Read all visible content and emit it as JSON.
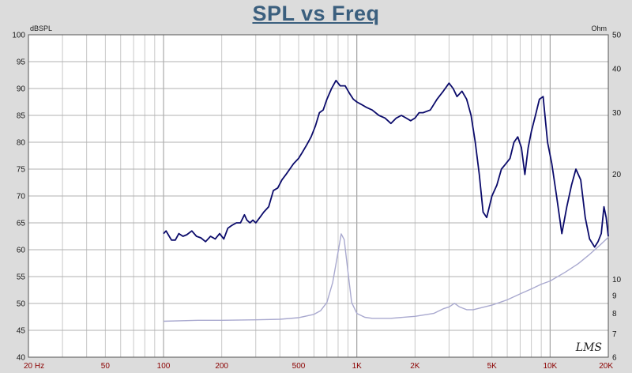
{
  "title": "SPL vs Freq",
  "logo_text": "LMS",
  "chart_data": {
    "type": "line",
    "x_scale": "log",
    "grid": true,
    "xlim": [
      20,
      20000
    ],
    "x_ticks": [
      {
        "v": 20,
        "label": "20 Hz"
      },
      {
        "v": 50,
        "label": "50"
      },
      {
        "v": 100,
        "label": "100"
      },
      {
        "v": 200,
        "label": "200"
      },
      {
        "v": 500,
        "label": "500"
      },
      {
        "v": 1000,
        "label": "1K"
      },
      {
        "v": 2000,
        "label": "2K"
      },
      {
        "v": 5000,
        "label": "5K"
      },
      {
        "v": 10000,
        "label": "10K"
      },
      {
        "v": 20000,
        "label": "20K"
      }
    ],
    "y_left": {
      "unit": "dBSPL",
      "ylim": [
        40,
        100
      ],
      "ticks": [
        "40",
        "45",
        "50",
        "55",
        "60",
        "65",
        "70",
        "75",
        "80",
        "85",
        "90",
        "95",
        "100"
      ]
    },
    "y_right": {
      "unit": "Ohm",
      "scale": "log",
      "ylim": [
        6,
        50
      ],
      "ticks": [
        {
          "v": 6,
          "label": "6"
        },
        {
          "v": 7,
          "label": "7"
        },
        {
          "v": 8,
          "label": "8"
        },
        {
          "v": 9,
          "label": "9"
        },
        {
          "v": 10,
          "label": "10"
        },
        {
          "v": 20,
          "label": "20"
        },
        {
          "v": 30,
          "label": "30"
        },
        {
          "v": 40,
          "label": "40"
        },
        {
          "v": 50,
          "label": "50"
        }
      ]
    },
    "series": [
      {
        "axis": "left",
        "color": "#0b0b6b",
        "points": [
          [
            100,
            63
          ],
          [
            103,
            63.5
          ],
          [
            107,
            62.5
          ],
          [
            110,
            61.8
          ],
          [
            115,
            61.8
          ],
          [
            120,
            63
          ],
          [
            126,
            62.5
          ],
          [
            132,
            62.8
          ],
          [
            140,
            63.5
          ],
          [
            148,
            62.5
          ],
          [
            156,
            62.2
          ],
          [
            165,
            61.5
          ],
          [
            175,
            62.5
          ],
          [
            185,
            62
          ],
          [
            195,
            63
          ],
          [
            205,
            62
          ],
          [
            215,
            64
          ],
          [
            225,
            64.5
          ],
          [
            238,
            65
          ],
          [
            250,
            65
          ],
          [
            262,
            66.5
          ],
          [
            270,
            65.5
          ],
          [
            280,
            65
          ],
          [
            290,
            65.5
          ],
          [
            300,
            65
          ],
          [
            315,
            66
          ],
          [
            330,
            67
          ],
          [
            350,
            68
          ],
          [
            370,
            71
          ],
          [
            390,
            71.5
          ],
          [
            410,
            73
          ],
          [
            430,
            74
          ],
          [
            450,
            75
          ],
          [
            470,
            76
          ],
          [
            500,
            77
          ],
          [
            520,
            78
          ],
          [
            550,
            79.5
          ],
          [
            580,
            81
          ],
          [
            610,
            83
          ],
          [
            640,
            85.5
          ],
          [
            670,
            86
          ],
          [
            700,
            88
          ],
          [
            740,
            90
          ],
          [
            780,
            91.5
          ],
          [
            820,
            90.5
          ],
          [
            870,
            90.5
          ],
          [
            920,
            89
          ],
          [
            960,
            88
          ],
          [
            1000,
            87.5
          ],
          [
            1060,
            87
          ],
          [
            1120,
            86.5
          ],
          [
            1200,
            86
          ],
          [
            1300,
            85
          ],
          [
            1400,
            84.5
          ],
          [
            1500,
            83.5
          ],
          [
            1600,
            84.5
          ],
          [
            1700,
            85
          ],
          [
            1800,
            84.5
          ],
          [
            1900,
            84
          ],
          [
            2000,
            84.5
          ],
          [
            2100,
            85.5
          ],
          [
            2200,
            85.5
          ],
          [
            2400,
            86
          ],
          [
            2600,
            88
          ],
          [
            2800,
            89.5
          ],
          [
            3000,
            91
          ],
          [
            3150,
            90
          ],
          [
            3300,
            88.5
          ],
          [
            3500,
            89.5
          ],
          [
            3700,
            88
          ],
          [
            3900,
            85
          ],
          [
            4100,
            80
          ],
          [
            4300,
            74
          ],
          [
            4500,
            67
          ],
          [
            4700,
            66
          ],
          [
            5000,
            70
          ],
          [
            5300,
            72
          ],
          [
            5600,
            75
          ],
          [
            5900,
            76
          ],
          [
            6200,
            77
          ],
          [
            6500,
            80
          ],
          [
            6800,
            81
          ],
          [
            7100,
            79
          ],
          [
            7400,
            74
          ],
          [
            7700,
            79
          ],
          [
            8000,
            82
          ],
          [
            8400,
            85
          ],
          [
            8800,
            88
          ],
          [
            9200,
            88.5
          ],
          [
            9700,
            80
          ],
          [
            10200,
            76
          ],
          [
            10800,
            70
          ],
          [
            11500,
            63
          ],
          [
            12200,
            68
          ],
          [
            12900,
            72
          ],
          [
            13600,
            75
          ],
          [
            14400,
            73
          ],
          [
            15200,
            66
          ],
          [
            16000,
            62
          ],
          [
            17000,
            60.5
          ],
          [
            17700,
            61.5
          ],
          [
            18400,
            63
          ],
          [
            19000,
            68
          ],
          [
            19500,
            66
          ],
          [
            20000,
            62.5
          ]
        ]
      },
      {
        "axis": "right",
        "color": "#a9a9cf",
        "points": [
          [
            100,
            7.6
          ],
          [
            150,
            7.65
          ],
          [
            200,
            7.65
          ],
          [
            300,
            7.67
          ],
          [
            400,
            7.7
          ],
          [
            500,
            7.78
          ],
          [
            600,
            7.95
          ],
          [
            650,
            8.15
          ],
          [
            700,
            8.6
          ],
          [
            750,
            9.8
          ],
          [
            800,
            12
          ],
          [
            830,
            13.5
          ],
          [
            860,
            13
          ],
          [
            900,
            10.5
          ],
          [
            940,
            8.6
          ],
          [
            1000,
            8
          ],
          [
            1100,
            7.8
          ],
          [
            1200,
            7.75
          ],
          [
            1500,
            7.75
          ],
          [
            2000,
            7.85
          ],
          [
            2500,
            8
          ],
          [
            2800,
            8.25
          ],
          [
            3000,
            8.35
          ],
          [
            3200,
            8.55
          ],
          [
            3400,
            8.35
          ],
          [
            3700,
            8.2
          ],
          [
            4000,
            8.2
          ],
          [
            5000,
            8.45
          ],
          [
            6000,
            8.75
          ],
          [
            7000,
            9.1
          ],
          [
            8000,
            9.4
          ],
          [
            9000,
            9.7
          ],
          [
            10000,
            9.9
          ],
          [
            12000,
            10.5
          ],
          [
            14000,
            11.1
          ],
          [
            16000,
            11.8
          ],
          [
            18000,
            12.5
          ],
          [
            20000,
            13.2
          ]
        ]
      }
    ]
  }
}
